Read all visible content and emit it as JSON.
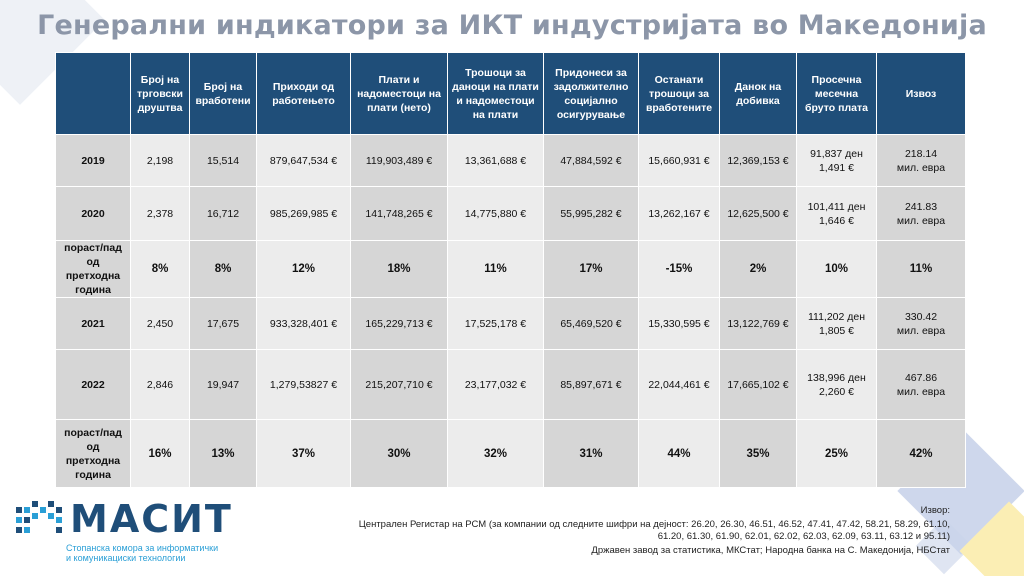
{
  "title": "Генерални индикатори за ИКТ индустријата во Македонија",
  "headers": [
    "",
    "Број на трговски друштва",
    "Број на вработени",
    "Приходи од работењето",
    "Плати и надоместоци на плати (нето)",
    "Трошоци за даноци на плати и надоместоци на плати",
    "Придонеси за задолжително социјално осигурување",
    "Останати трошоци за вработените",
    "Данок на добивка",
    "Просечна месечна бруто плата",
    "Извоз"
  ],
  "rows": [
    {
      "type": "year",
      "cells": [
        "2019",
        "2,198",
        "15,514",
        "879,647,534 €",
        "119,903,489 €",
        "13,361,688 €",
        "47,884,592  €",
        "15,660,931 €",
        "12,369,153 €",
        "91,837 ден\n1,491  €",
        "218.14\nмил. евра"
      ]
    },
    {
      "type": "year",
      "cells": [
        "2020",
        "2,378",
        "16,712",
        "985,269,985  €",
        "141,748,265 €",
        "14,775,880 €",
        "55,995,282 €",
        "13,262,167 €",
        "12,625,500 €",
        "101,411 ден\n1,646 €",
        "241.83\nмил. евра"
      ]
    },
    {
      "type": "growth",
      "cells": [
        "пораст/пад\nод претходна\nгодина",
        "8%",
        "8%",
        "12%",
        "18%",
        "11%",
        "17%",
        "-15%",
        "2%",
        "10%",
        "11%"
      ]
    },
    {
      "type": "year",
      "cells": [
        "2021",
        "2,450",
        "17,675",
        "933,328,401 €",
        "165,229,713 €",
        "17,525,178 €",
        "65,469,520 €",
        "15,330,595 €",
        "13,122,769 €",
        "111,202 ден\n1,805 €",
        "330.42\nмил. евра"
      ]
    },
    {
      "type": "year",
      "cells": [
        "2022",
        "2,846",
        "19,947",
        "1,279,53827 €",
        "215,207,710 €",
        "23,177,032 €",
        "85,897,671 €",
        "22,044,461 €",
        "17,665,102 €",
        "138,996 ден\n2,260 €",
        "467.86\nмил. евра"
      ]
    },
    {
      "type": "growth",
      "cells": [
        "пораст/пад\nод претходна\nгодина",
        "16%",
        "13%",
        "37%",
        "30%",
        "32%",
        "31%",
        "44%",
        "35%",
        "25%",
        "42%"
      ]
    }
  ],
  "logo": {
    "name": "МАСИТ",
    "subtitle_1": "Стопанска комора за информатички",
    "subtitle_2": "и комуникациски технологии"
  },
  "source": {
    "label": "Извор:",
    "line1": "Централен Регистар на РСМ (за компании од следните шифри на дејност: 26.20, 26.30, 46.51, 46.52, 47.41, 47.42, 58.21, 58.29, 61.10, 61.20, 61.30, 61.90, 62.01, 62.02, 62.03, 62.09, 63.11, 63.12 и 95.11)",
    "line2": "Државен завод за статистика, МКСтат; Народна банка на С. Македонија, НБСтат"
  },
  "colors": {
    "header_bg": "#1f4e79",
    "title": "#8c96a8",
    "cell_dark": "#d6d6d6",
    "cell_light": "#ececec"
  }
}
